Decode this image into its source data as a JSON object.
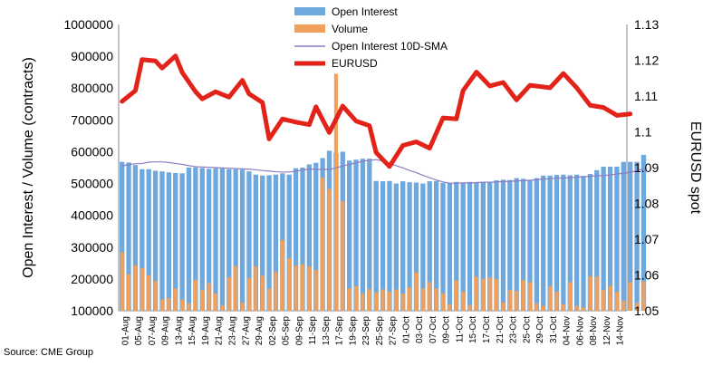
{
  "chart_data": {
    "type": "bar",
    "source": "Source: CME Group",
    "ylabel_left": "Open Interest / Volume (contracts)",
    "ylabel_right": "EURUSD spot",
    "ylim_left": [
      100000,
      1000000
    ],
    "yticks_left": [
      "100000",
      "200000",
      "300000",
      "400000",
      "500000",
      "600000",
      "700000",
      "800000",
      "900000",
      "1000000"
    ],
    "ylim_right": [
      1.05,
      1.13
    ],
    "yticks_right": [
      "1.05",
      "1.06",
      "1.07",
      "1.08",
      "1.09",
      "1.1",
      "1.11",
      "1.12",
      "1.13"
    ],
    "xticks": [
      "01-Aug",
      "05-Aug",
      "07-Aug",
      "09-Aug",
      "13-Aug",
      "15-Aug",
      "19-Aug",
      "21-Aug",
      "23-Aug",
      "27-Aug",
      "29-Aug",
      "02-Sep",
      "05-Sep",
      "09-Sep",
      "11-Sep",
      "13-Sep",
      "17-Sep",
      "19-Sep",
      "23-Sep",
      "25-Sep",
      "27-Sep",
      "01-Oct",
      "03-Oct",
      "07-Oct",
      "09-Oct",
      "11-Oct",
      "15-Oct",
      "17-Oct",
      "21-Oct",
      "23-Oct",
      "25-Oct",
      "29-Oct",
      "31-Oct",
      "04-Nov",
      "06-Nov",
      "08-Nov",
      "12-Nov",
      "14-Nov"
    ],
    "legend": {
      "position": "top-center",
      "entries": [
        "Open Interest",
        "Volume",
        "Open Interest 10D-SMA",
        "EURUSD"
      ]
    },
    "series": [
      {
        "name": "Open Interest",
        "type": "bar",
        "color": "#6fa8dc",
        "values": [
          568000,
          566000,
          558000,
          545000,
          545000,
          540000,
          538000,
          535000,
          533000,
          532000,
          550000,
          551000,
          549000,
          546000,
          548000,
          547000,
          545000,
          545000,
          544000,
          538000,
          528000,
          525000,
          526000,
          528000,
          532000,
          528000,
          548000,
          550000,
          560000,
          565000,
          580000,
          603000,
          597000,
          600000,
          572000,
          575000,
          578000,
          578000,
          508000,
          507000,
          508000,
          500000,
          507000,
          504000,
          503000,
          500000,
          507000,
          508000,
          502000,
          502000,
          505000,
          502000,
          505000,
          504000,
          505000,
          505000,
          510000,
          512000,
          511000,
          517000,
          515000,
          512000,
          517000,
          525000,
          525000,
          527000,
          528000,
          526000,
          528000,
          524000,
          530000,
          542000,
          553000,
          553000,
          553000,
          568000,
          568000,
          568000,
          590000
        ]
      },
      {
        "name": "Volume",
        "type": "bar",
        "color": "#f0a05a",
        "values": [
          284000,
          215000,
          242000,
          234000,
          212000,
          193000,
          135000,
          140000,
          170000,
          135000,
          123000,
          197000,
          165000,
          187000,
          155000,
          117000,
          205000,
          241000,
          125000,
          202000,
          240000,
          210000,
          170000,
          223000,
          322000,
          265000,
          243000,
          246000,
          239000,
          228000,
          518000,
          483000,
          845000,
          445000,
          170000,
          177000,
          155000,
          168000,
          157000,
          167000,
          160000,
          167000,
          154000,
          173000,
          220000,
          170000,
          190000,
          170000,
          155000,
          121000,
          195000,
          160000,
          118000,
          207000,
          200000,
          205000,
          200000,
          126000,
          165000,
          162000,
          196000,
          190000,
          123000,
          116000,
          176000,
          160000,
          120000,
          190000,
          116000,
          110000,
          208000,
          208000,
          165000,
          178000,
          160000,
          132000,
          190000,
          125000,
          192000
        ]
      },
      {
        "name": "Open Interest 10D-SMA",
        "type": "line",
        "color": "#8e7cc3",
        "values": [
          555000,
          560000,
          562000,
          563000,
          567000,
          568000,
          568000,
          566000,
          563000,
          560000,
          556000,
          553000,
          552000,
          551000,
          550000,
          549000,
          548000,
          547000,
          546000,
          545000,
          543000,
          541000,
          539000,
          537000,
          536000,
          536000,
          539000,
          542000,
          545000,
          545000,
          544000,
          544000,
          549000,
          555000,
          560000,
          565000,
          570000,
          573000,
          575000,
          571000,
          564000,
          556000,
          549000,
          541000,
          534000,
          526000,
          518000,
          511000,
          505000,
          501000,
          501000,
          502000,
          502000,
          503000,
          504000,
          504000,
          505000,
          506000,
          507000,
          508000,
          509000,
          510000,
          512000,
          514000,
          515000,
          517000,
          517000,
          518000,
          520000,
          521000,
          523000,
          524000,
          525000,
          527000,
          530000,
          532000,
          535000,
          540000,
          546000
        ]
      },
      {
        "name": "EURUSD",
        "type": "line",
        "color": "#e2231a",
        "x": [
          0,
          2,
          3,
          5,
          6,
          8,
          9,
          11,
          12,
          14,
          16,
          18,
          19,
          21,
          22,
          24,
          26,
          28,
          29,
          31,
          33,
          35,
          37,
          38,
          40,
          42,
          44,
          46,
          48,
          50,
          51,
          53,
          55,
          57,
          59,
          61,
          64,
          66,
          68,
          70,
          72,
          74,
          76
        ],
        "values": [
          1.1085,
          1.1115,
          1.1202,
          1.1198,
          1.1178,
          1.1212,
          1.1166,
          1.1112,
          1.1092,
          1.1112,
          1.1097,
          1.1144,
          1.1106,
          1.1082,
          1.098,
          1.1036,
          1.1027,
          1.102,
          1.107,
          1.0998,
          1.1072,
          1.103,
          1.1017,
          1.0942,
          1.0903,
          1.0962,
          1.0972,
          1.0954,
          1.1039,
          1.1036,
          1.1115,
          1.1167,
          1.1128,
          1.1138,
          1.1089,
          1.113,
          1.1123,
          1.1163,
          1.1123,
          1.1074,
          1.1068,
          1.1046,
          1.105
        ]
      }
    ]
  }
}
